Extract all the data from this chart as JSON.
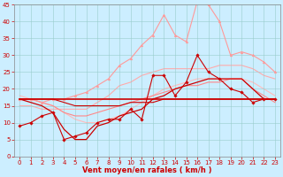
{
  "background_color": "#cceeff",
  "grid_color": "#99cccc",
  "xlabel": "Vent moyen/en rafales ( km/h )",
  "xlabel_color": "#cc0000",
  "xlabel_fontsize": 6,
  "tick_color": "#cc0000",
  "tick_fontsize": 5,
  "xlim": [
    -0.5,
    23.5
  ],
  "ylim": [
    0,
    45
  ],
  "yticks": [
    0,
    5,
    10,
    15,
    20,
    25,
    30,
    35,
    40,
    45
  ],
  "xticks": [
    0,
    1,
    2,
    3,
    4,
    5,
    6,
    7,
    8,
    9,
    10,
    11,
    12,
    13,
    14,
    15,
    16,
    17,
    18,
    19,
    20,
    21,
    22,
    23
  ],
  "series": [
    {
      "x": [
        0,
        1,
        2,
        3,
        4,
        5,
        6,
        7,
        8,
        9,
        10,
        11,
        12,
        13,
        14,
        15,
        16,
        17,
        18,
        19,
        20,
        21,
        22,
        23
      ],
      "y": [
        9,
        10,
        12,
        13,
        5,
        6,
        7,
        10,
        11,
        11,
        14,
        11,
        24,
        24,
        18,
        22,
        30,
        25,
        23,
        20,
        19,
        16,
        17,
        17
      ],
      "color": "#cc0000",
      "lw": 0.8,
      "marker": "D",
      "ms": 1.8,
      "zorder": 5
    },
    {
      "x": [
        0,
        1,
        2,
        3,
        4,
        5,
        6,
        7,
        8,
        9,
        10,
        11,
        12,
        13,
        14,
        15,
        16,
        17,
        18,
        19,
        20,
        21,
        22,
        23
      ],
      "y": [
        17,
        16,
        15,
        13,
        8,
        5,
        5,
        9,
        10,
        12,
        13,
        14,
        17,
        18,
        20,
        21,
        22,
        23,
        23,
        23,
        23,
        20,
        17,
        17
      ],
      "color": "#cc0000",
      "lw": 0.9,
      "marker": null,
      "ms": 0,
      "zorder": 4
    },
    {
      "x": [
        0,
        1,
        2,
        3,
        4,
        5,
        6,
        7,
        8,
        9,
        10,
        11,
        12,
        13,
        14,
        15,
        16,
        17,
        18,
        19,
        20,
        21,
        22,
        23
      ],
      "y": [
        17,
        17,
        17,
        17,
        17,
        17,
        17,
        17,
        17,
        17,
        17,
        17,
        17,
        17,
        17,
        17,
        17,
        17,
        17,
        17,
        17,
        17,
        17,
        17
      ],
      "color": "#cc0000",
      "lw": 1.2,
      "marker": null,
      "ms": 0,
      "zorder": 3
    },
    {
      "x": [
        0,
        1,
        2,
        3,
        4,
        5,
        6,
        7,
        8,
        9,
        10,
        11,
        12,
        13,
        14,
        15,
        16,
        17,
        18,
        19,
        20,
        21,
        22,
        23
      ],
      "y": [
        17,
        17,
        17,
        17,
        16,
        15,
        15,
        15,
        15,
        15,
        16,
        16,
        16,
        17,
        17,
        17,
        17,
        17,
        17,
        17,
        17,
        17,
        17,
        17
      ],
      "color": "#cc0000",
      "lw": 0.8,
      "marker": null,
      "ms": 0,
      "zorder": 3
    },
    {
      "x": [
        0,
        1,
        2,
        3,
        4,
        5,
        6,
        7,
        8,
        9,
        10,
        11,
        12,
        13,
        14,
        15,
        16,
        17,
        18,
        19,
        20,
        21,
        22,
        23
      ],
      "y": [
        17,
        17,
        16,
        15,
        13,
        12,
        12,
        13,
        14,
        15,
        16,
        17,
        18,
        19,
        20,
        21,
        21,
        22,
        22,
        23,
        23,
        20,
        18,
        16
      ],
      "color": "#ff8888",
      "lw": 0.8,
      "marker": null,
      "ms": 0,
      "zorder": 2
    },
    {
      "x": [
        0,
        1,
        2,
        3,
        4,
        5,
        6,
        7,
        8,
        9,
        10,
        11,
        12,
        13,
        14,
        15,
        16,
        17,
        18,
        19,
        20,
        21,
        22,
        23
      ],
      "y": [
        17,
        17,
        16,
        17,
        17,
        18,
        19,
        21,
        23,
        27,
        29,
        33,
        36,
        42,
        36,
        34,
        46,
        45,
        40,
        30,
        31,
        30,
        28,
        25
      ],
      "color": "#ff9999",
      "lw": 0.8,
      "marker": "^",
      "ms": 2.0,
      "zorder": 2
    },
    {
      "x": [
        0,
        1,
        2,
        3,
        4,
        5,
        6,
        7,
        8,
        9,
        10,
        11,
        12,
        13,
        14,
        15,
        16,
        17,
        18,
        19,
        20,
        21,
        22,
        23
      ],
      "y": [
        15,
        15,
        14,
        14,
        14,
        14,
        14,
        16,
        18,
        21,
        22,
        24,
        25,
        26,
        26,
        26,
        26,
        26,
        27,
        27,
        27,
        26,
        24,
        23
      ],
      "color": "#ffaaaa",
      "lw": 0.8,
      "marker": null,
      "ms": 0,
      "zorder": 1
    },
    {
      "x": [
        0,
        1,
        2,
        3,
        4,
        5,
        6,
        7,
        8,
        9,
        10,
        11,
        12,
        13,
        14,
        15,
        16,
        17,
        18,
        19,
        20,
        21,
        22,
        23
      ],
      "y": [
        18,
        17,
        16,
        15,
        13,
        11,
        10,
        10,
        11,
        12,
        14,
        16,
        18,
        20,
        21,
        22,
        23,
        23,
        23,
        23,
        23,
        22,
        20,
        18
      ],
      "color": "#ffbbbb",
      "lw": 0.8,
      "marker": null,
      "ms": 0,
      "zorder": 1
    }
  ]
}
